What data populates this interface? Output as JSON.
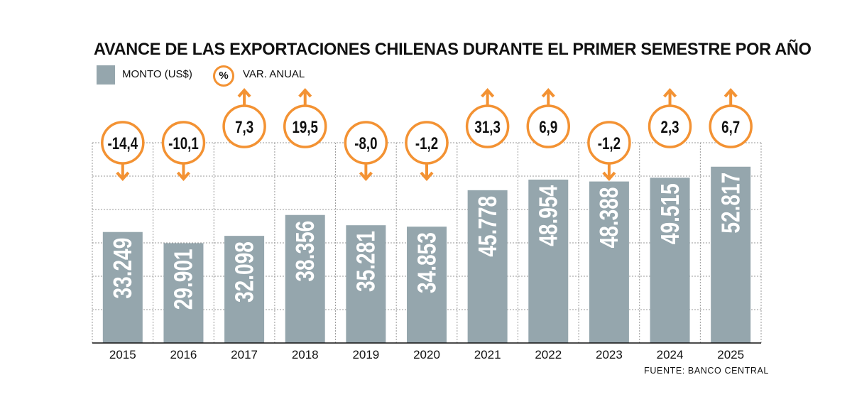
{
  "chart_data": {
    "type": "bar",
    "title": "AVANCE DE LAS EXPORTACIONES CHILENAS DURANTE EL PRIMER SEMESTRE POR AÑO",
    "categories": [
      "2015",
      "2016",
      "2017",
      "2018",
      "2019",
      "2020",
      "2021",
      "2022",
      "2023",
      "2024",
      "2025"
    ],
    "series": [
      {
        "name": "MONTO (US$)",
        "values": [
          33249,
          29901,
          32098,
          38356,
          35281,
          34853,
          45778,
          48954,
          48388,
          49515,
          52817
        ],
        "labels": [
          "33.249",
          "29.901",
          "32.098",
          "38.356",
          "35.281",
          "34.853",
          "45.778",
          "48.954",
          "48.388",
          "49.515",
          "52.817"
        ]
      },
      {
        "name": "VAR. ANUAL",
        "values": [
          -14.4,
          -10.1,
          7.3,
          19.5,
          -8.0,
          -1.2,
          31.3,
          6.9,
          -1.2,
          2.3,
          6.7
        ],
        "labels": [
          "-14,4",
          "-10,1",
          "7,3",
          "19,5",
          "-8,0",
          "-1,2",
          "31,3",
          "6,9",
          "-1,2",
          "2,3",
          "6,7"
        ]
      }
    ],
    "ylim": [
      0,
      60000
    ],
    "grid": true,
    "legend_position": "top-left"
  },
  "legend": {
    "amount_label": "MONTO (US$)",
    "percent_symbol": "%",
    "variation_label": "VAR. ANUAL"
  },
  "source": "FUENTE: BANCO CENTRAL",
  "colors": {
    "bar": "#95a6ad",
    "accent": "#f39233",
    "grid": "#9a9a9a",
    "bar_text": "#ffffff"
  }
}
